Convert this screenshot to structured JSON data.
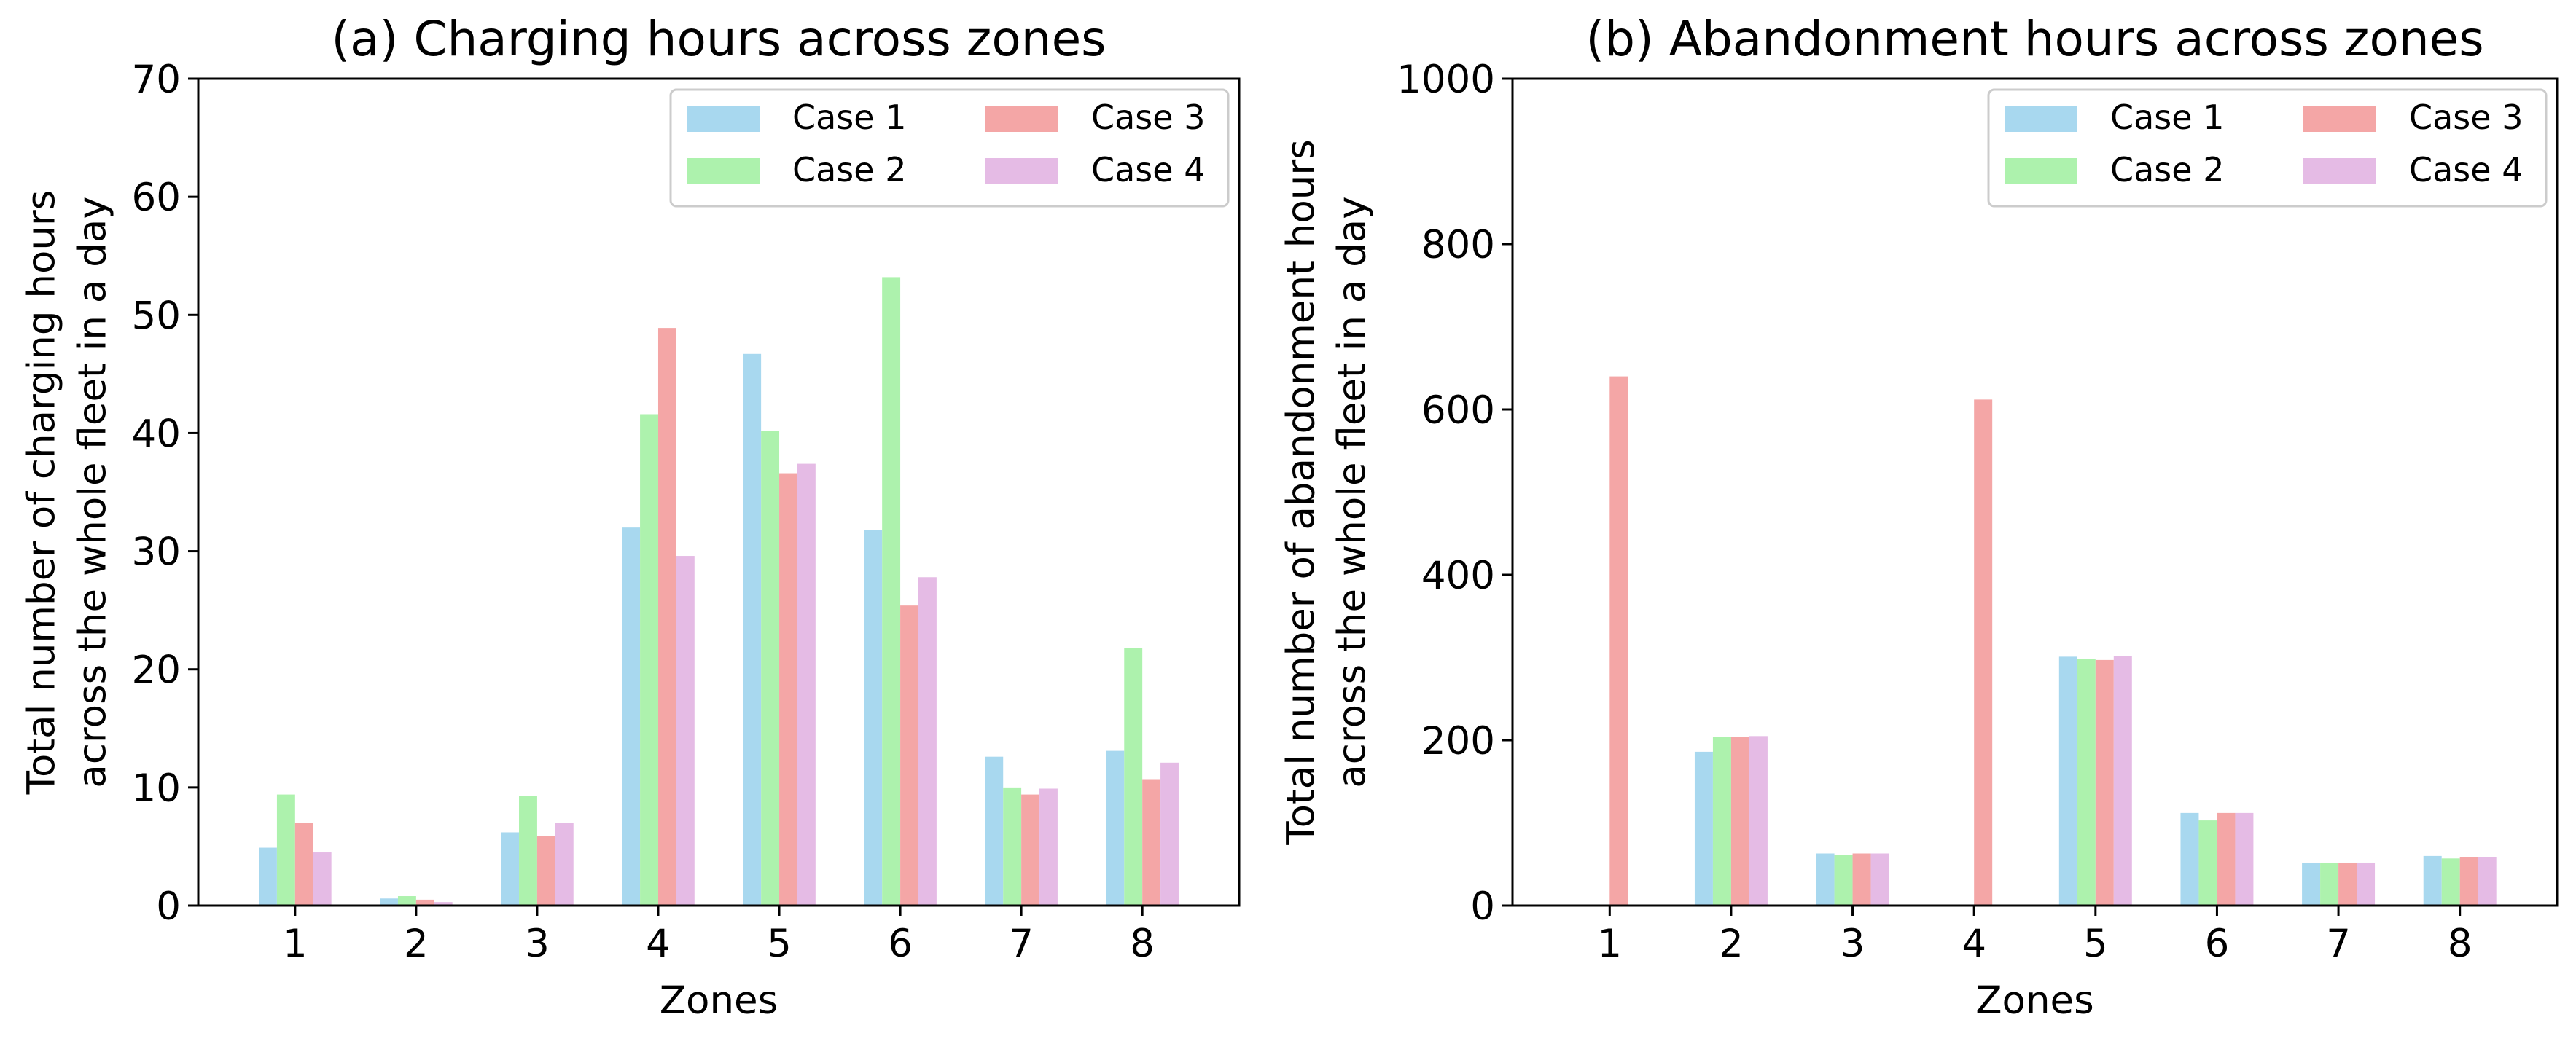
{
  "chart_data": [
    {
      "type": "bar",
      "title": "(a) Charging hours across zones",
      "xlabel": "Zones",
      "ylabel": [
        "Total number of charging hours",
        "across the whole fleet in a day"
      ],
      "categories": [
        "1",
        "2",
        "3",
        "4",
        "5",
        "6",
        "7",
        "8"
      ],
      "ylim": [
        0,
        70
      ],
      "yticks": [
        0,
        10,
        20,
        30,
        40,
        50,
        60,
        70
      ],
      "legend_position": "top-right",
      "series": [
        {
          "name": "Case 1",
          "color": "#a8d8ef",
          "values": [
            4.9,
            0.6,
            6.2,
            32.0,
            46.7,
            31.8,
            12.6,
            13.1
          ]
        },
        {
          "name": "Case 2",
          "color": "#adf2ad",
          "values": [
            9.4,
            0.8,
            9.3,
            41.6,
            40.2,
            53.2,
            10.0,
            21.8
          ]
        },
        {
          "name": "Case 3",
          "color": "#f4a6a6",
          "values": [
            7.0,
            0.5,
            5.9,
            48.9,
            36.6,
            25.4,
            9.4,
            10.7
          ]
        },
        {
          "name": "Case 4",
          "color": "#e5bbe5",
          "values": [
            4.5,
            0.3,
            7.0,
            29.6,
            37.4,
            27.8,
            9.9,
            12.1
          ]
        }
      ]
    },
    {
      "type": "bar",
      "title": "(b) Abandonment hours across zones",
      "xlabel": "Zones",
      "ylabel": [
        "Total number of abandonment hours",
        "across the whole fleet in a day"
      ],
      "categories": [
        "1",
        "2",
        "3",
        "4",
        "5",
        "6",
        "7",
        "8"
      ],
      "ylim": [
        0,
        1000
      ],
      "yticks": [
        0,
        200,
        400,
        600,
        800,
        1000
      ],
      "legend_position": "top-right",
      "series": [
        {
          "name": "Case 1",
          "color": "#a8d8ef",
          "values": [
            0,
            186,
            63,
            0,
            301,
            112,
            52,
            60
          ]
        },
        {
          "name": "Case 2",
          "color": "#adf2ad",
          "values": [
            0,
            204,
            61,
            0,
            298,
            103,
            52,
            57
          ]
        },
        {
          "name": "Case 3",
          "color": "#f4a6a6",
          "values": [
            640,
            204,
            63,
            612,
            297,
            112,
            52,
            59
          ]
        },
        {
          "name": "Case 4",
          "color": "#e5bbe5",
          "values": [
            0,
            205,
            63,
            0,
            302,
            112,
            52,
            59
          ]
        }
      ]
    }
  ]
}
